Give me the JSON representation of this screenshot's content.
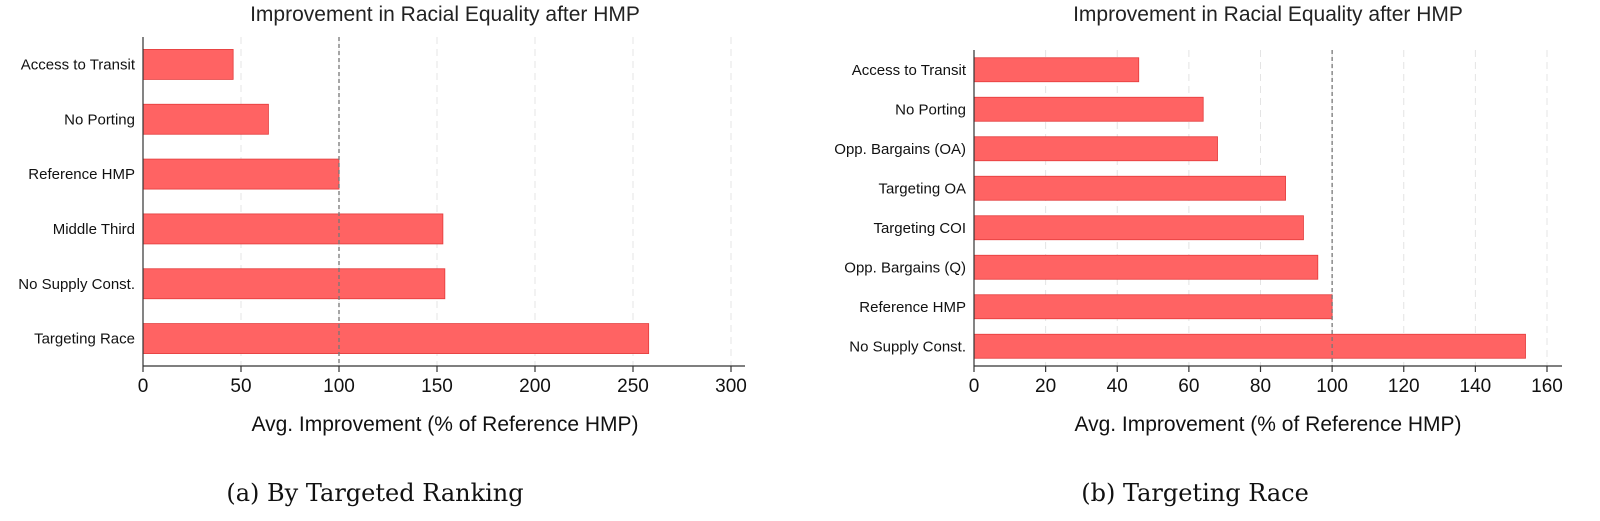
{
  "chart_data": [
    {
      "type": "bar",
      "orientation": "horizontal",
      "title": "Improvement in Racial Equality after HMP",
      "xlabel": "Avg. Improvement (% of Reference HMP)",
      "caption": "(a) By Targeted Ranking",
      "categories": [
        "Access to Transit",
        "No Porting",
        "Reference HMP",
        "Middle Third",
        "No Supply Const.",
        "Targeting Race"
      ],
      "values": [
        46,
        64,
        100,
        153,
        154,
        258
      ],
      "xlim": [
        0,
        300
      ],
      "xticks": [
        "0",
        "50",
        "100",
        "150",
        "200",
        "250",
        "300"
      ],
      "reference_line": 100,
      "bar_color": "#ff6363",
      "grid": "vertical dashed"
    },
    {
      "type": "bar",
      "orientation": "horizontal",
      "title": "Improvement in Racial Equality after HMP",
      "xlabel": "Avg. Improvement (% of Reference HMP)",
      "caption": "(b) Targeting Race",
      "categories": [
        "Access to Transit",
        "No Porting",
        "Opp. Bargains (OA)",
        "Targeting OA",
        "Targeting COI",
        "Opp. Bargains (Q)",
        "Reference HMP",
        "No Supply Const."
      ],
      "values": [
        46,
        64,
        68,
        87,
        92,
        96,
        100,
        154
      ],
      "xlim": [
        0,
        160
      ],
      "xticks": [
        "0",
        "20",
        "40",
        "60",
        "80",
        "100",
        "120",
        "140",
        "160"
      ],
      "reference_line": 100,
      "bar_color": "#ff6363",
      "grid": "vertical dashed"
    }
  ]
}
